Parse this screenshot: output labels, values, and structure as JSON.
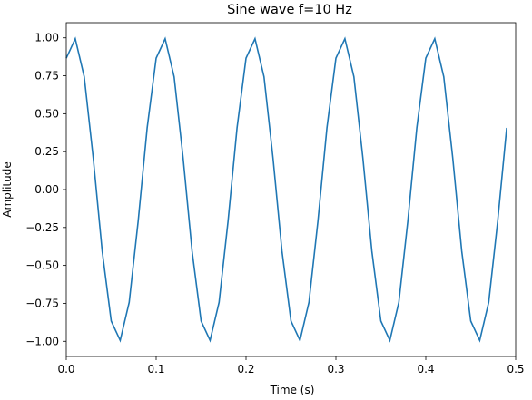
{
  "chart_data": {
    "type": "line",
    "title": "Sine wave f=10 Hz",
    "xlabel": "Time (s)",
    "ylabel": "Amplitude",
    "xlim": [
      0.0,
      0.5
    ],
    "ylim": [
      -1.1,
      1.1
    ],
    "x_ticks": [
      0.0,
      0.1,
      0.2,
      0.3,
      0.4,
      0.5
    ],
    "x_tick_labels": [
      "0.0",
      "0.1",
      "0.2",
      "0.3",
      "0.4",
      "0.5"
    ],
    "y_ticks": [
      -1.0,
      -0.75,
      -0.5,
      -0.25,
      0.0,
      0.25,
      0.5,
      0.75,
      1.0
    ],
    "y_tick_labels": [
      "−1.00",
      "−0.75",
      "−0.50",
      "−0.25",
      "0.00",
      "0.25",
      "0.50",
      "0.75",
      "1.00"
    ],
    "grid": false,
    "line_color": "#1f77b4",
    "series": [
      {
        "function": "sine",
        "frequency_hz": 10,
        "amplitude": 1.0,
        "phase_rad": 1.047,
        "x_start": 0.0,
        "x_end": 0.49,
        "samples": 50
      }
    ]
  }
}
